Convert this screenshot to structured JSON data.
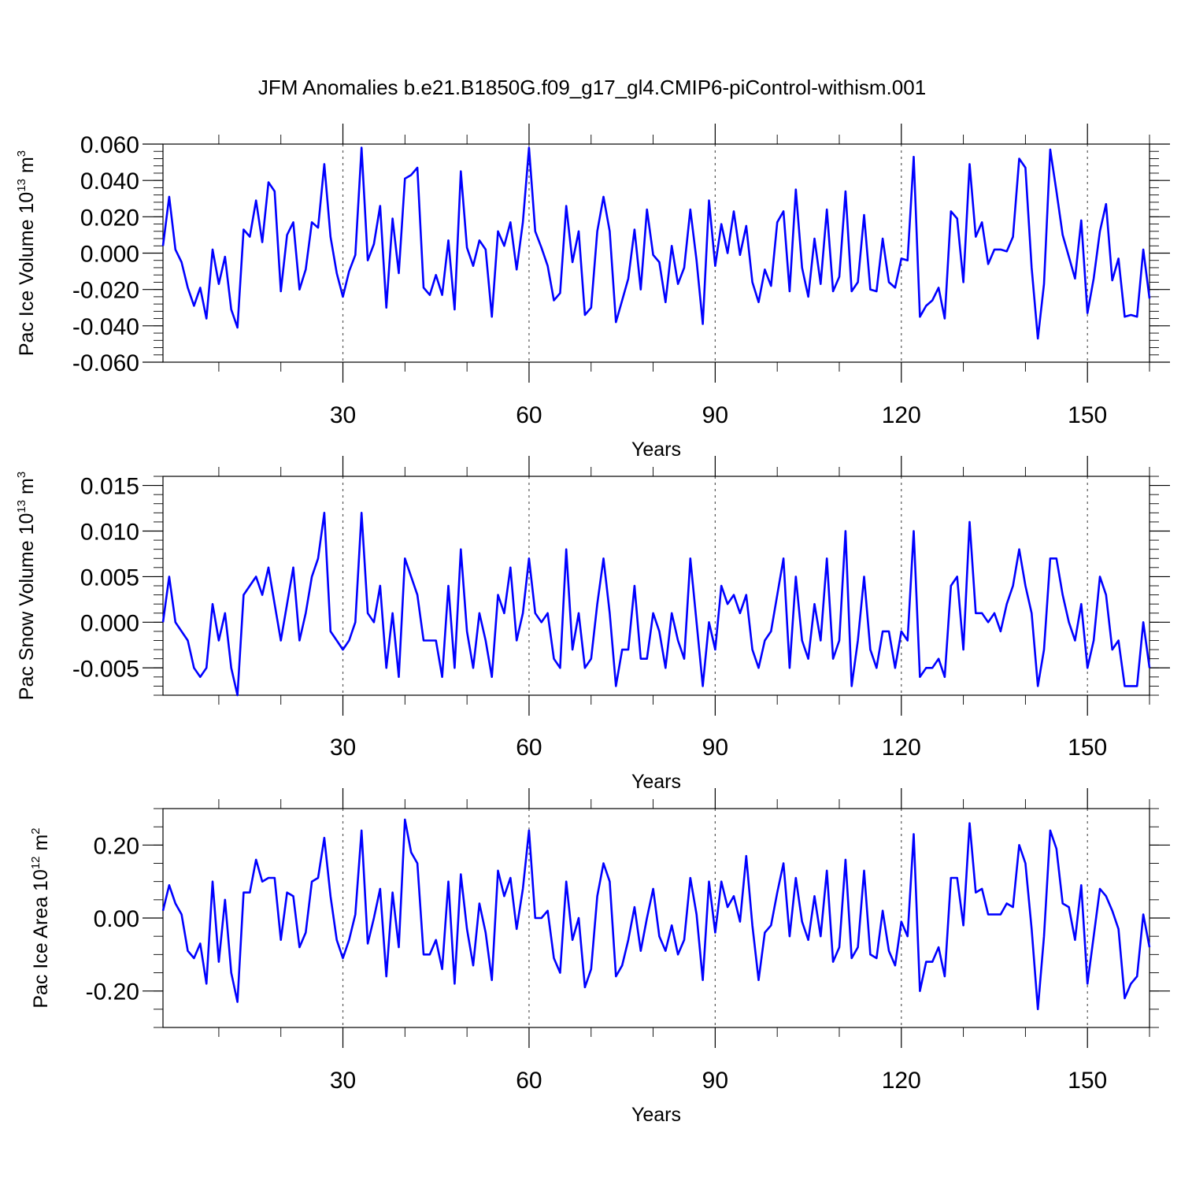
{
  "title": "JFM Anomalies b.e21.B1850G.f09_g17_gl4.CMIP6-piControl-withism.001",
  "line_color": "#0000ff",
  "chart_data": [
    {
      "type": "line",
      "xlabel": "Years",
      "ylabel": "Pac Ice Volume 10",
      "ylabel_sup": "13",
      "ylabel_unit": " m",
      "ylabel_unit_sup": "3",
      "xlim": [
        1,
        160
      ],
      "ylim": [
        -0.06,
        0.06
      ],
      "yticks": [
        -0.06,
        -0.04,
        -0.02,
        0.0,
        0.02,
        0.04,
        0.06
      ],
      "ytick_labels": [
        "-0.060",
        "-0.040",
        "-0.020",
        "0.000",
        "0.020",
        "0.040",
        "0.060"
      ],
      "xticks": [
        30,
        60,
        90,
        120,
        150
      ],
      "xtick_labels": [
        "30",
        "60",
        "90",
        "120",
        "150"
      ],
      "grid": "vertical dashed at x ticks",
      "series": [
        {
          "values": [
            0.004,
            0.031,
            0.002,
            -0.005,
            -0.019,
            -0.029,
            -0.019,
            -0.036,
            0.002,
            -0.017,
            -0.002,
            -0.031,
            -0.041,
            0.013,
            0.009,
            0.029,
            0.006,
            0.039,
            0.034,
            -0.021,
            0.01,
            0.017,
            -0.02,
            -0.009,
            0.017,
            0.014,
            0.049,
            0.009,
            -0.011,
            -0.024,
            -0.01,
            -0.001,
            0.058,
            -0.004,
            0.005,
            0.026,
            -0.03,
            0.019,
            -0.011,
            0.041,
            0.043,
            0.047,
            -0.019,
            -0.023,
            -0.012,
            -0.023,
            0.007,
            -0.031,
            0.045,
            0.003,
            -0.007,
            0.007,
            0.002,
            -0.035,
            0.012,
            0.004,
            0.017,
            -0.009,
            0.017,
            0.058,
            0.012,
            0.003,
            -0.007,
            -0.026,
            -0.022,
            0.026,
            -0.005,
            0.012,
            -0.034,
            -0.03,
            0.012,
            0.031,
            0.012,
            -0.038,
            -0.026,
            -0.014,
            0.013,
            -0.02,
            0.024,
            -0.001,
            -0.005,
            -0.027,
            0.004,
            -0.017,
            -0.008,
            0.024,
            -0.004,
            -0.039,
            0.029,
            -0.007,
            0.016,
            0.0,
            0.023,
            -0.001,
            0.015,
            -0.016,
            -0.027,
            -0.009,
            -0.018,
            0.017,
            0.023,
            -0.021,
            0.035,
            -0.008,
            -0.024,
            0.008,
            -0.017,
            0.024,
            -0.021,
            -0.013,
            0.034,
            -0.021,
            -0.016,
            0.021,
            -0.02,
            -0.021,
            0.008,
            -0.016,
            -0.019,
            -0.003,
            -0.004,
            0.053,
            -0.035,
            -0.029,
            -0.026,
            -0.019,
            -0.036,
            0.023,
            0.019,
            -0.016,
            0.049,
            0.009,
            0.017,
            -0.006,
            0.002,
            0.002,
            0.001,
            0.009,
            0.052,
            0.047,
            -0.008,
            -0.047,
            -0.017,
            0.057,
            0.034,
            0.01,
            -0.002,
            -0.014,
            0.018,
            -0.033,
            -0.014,
            0.012,
            0.027,
            -0.015,
            -0.003,
            -0.035,
            -0.034,
            -0.035,
            0.002,
            -0.025
          ]
        }
      ]
    },
    {
      "type": "line",
      "xlabel": "Years",
      "ylabel": "Pac Snow Volume 10",
      "ylabel_sup": "13",
      "ylabel_unit": " m",
      "ylabel_unit_sup": "3",
      "xlim": [
        1,
        160
      ],
      "ylim": [
        -0.008,
        0.016
      ],
      "yticks": [
        -0.005,
        0.0,
        0.005,
        0.01,
        0.015
      ],
      "ytick_labels": [
        "-0.005",
        "0.000",
        "0.005",
        "0.010",
        "0.015"
      ],
      "xticks": [
        30,
        60,
        90,
        120,
        150
      ],
      "xtick_labels": [
        "30",
        "60",
        "90",
        "120",
        "150"
      ],
      "grid": "vertical dashed at x ticks",
      "series": [
        {
          "values": [
            0.0,
            0.005,
            0.0,
            -0.001,
            -0.002,
            -0.005,
            -0.006,
            -0.005,
            0.002,
            -0.002,
            0.001,
            -0.005,
            -0.008,
            0.003,
            0.004,
            0.005,
            0.003,
            0.006,
            0.002,
            -0.002,
            0.002,
            0.006,
            -0.002,
            0.001,
            0.005,
            0.007,
            0.012,
            -0.001,
            -0.002,
            -0.003,
            -0.002,
            0.0,
            0.012,
            0.001,
            0.0,
            0.004,
            -0.005,
            0.001,
            -0.006,
            0.007,
            0.005,
            0.003,
            -0.002,
            -0.002,
            -0.002,
            -0.006,
            0.004,
            -0.005,
            0.008,
            -0.001,
            -0.005,
            0.001,
            -0.002,
            -0.006,
            0.003,
            0.001,
            0.006,
            -0.002,
            0.001,
            0.007,
            0.001,
            0.0,
            0.001,
            -0.004,
            -0.005,
            0.008,
            -0.003,
            0.001,
            -0.005,
            -0.004,
            0.002,
            0.007,
            0.001,
            -0.007,
            -0.003,
            -0.003,
            0.004,
            -0.004,
            -0.004,
            0.001,
            -0.001,
            -0.005,
            0.001,
            -0.002,
            -0.004,
            0.007,
            0.0,
            -0.007,
            0.0,
            -0.003,
            0.004,
            0.002,
            0.003,
            0.001,
            0.003,
            -0.003,
            -0.005,
            -0.002,
            -0.001,
            0.003,
            0.007,
            -0.005,
            0.005,
            -0.002,
            -0.004,
            0.002,
            -0.002,
            0.007,
            -0.004,
            -0.002,
            0.01,
            -0.007,
            -0.002,
            0.005,
            -0.003,
            -0.005,
            -0.001,
            -0.001,
            -0.005,
            -0.001,
            -0.002,
            0.01,
            -0.006,
            -0.005,
            -0.005,
            -0.004,
            -0.006,
            0.004,
            0.005,
            -0.003,
            0.011,
            0.001,
            0.001,
            0.0,
            0.001,
            -0.001,
            0.002,
            0.004,
            0.008,
            0.004,
            0.001,
            -0.007,
            -0.003,
            0.007,
            0.007,
            0.003,
            0.0,
            -0.002,
            0.002,
            -0.005,
            -0.002,
            0.005,
            0.003,
            -0.003,
            -0.002,
            -0.007,
            -0.007,
            -0.007,
            0.0,
            -0.005
          ]
        }
      ]
    },
    {
      "type": "line",
      "xlabel": "Years",
      "ylabel": "Pac Ice Area 10",
      "ylabel_sup": "12",
      "ylabel_unit": " m",
      "ylabel_unit_sup": "2",
      "xlim": [
        1,
        160
      ],
      "ylim": [
        -0.3,
        0.3
      ],
      "yticks": [
        -0.2,
        0.0,
        0.2
      ],
      "ytick_labels": [
        "-0.20",
        "0.00",
        "0.20"
      ],
      "xticks": [
        30,
        60,
        90,
        120,
        150
      ],
      "xtick_labels": [
        "30",
        "60",
        "90",
        "120",
        "150"
      ],
      "grid": "vertical dashed at x ticks",
      "series": [
        {
          "values": [
            0.02,
            0.09,
            0.04,
            0.01,
            -0.09,
            -0.11,
            -0.07,
            -0.18,
            0.1,
            -0.12,
            0.05,
            -0.15,
            -0.23,
            0.07,
            0.07,
            0.16,
            0.1,
            0.11,
            0.11,
            -0.06,
            0.07,
            0.06,
            -0.08,
            -0.04,
            0.1,
            0.11,
            0.22,
            0.06,
            -0.06,
            -0.11,
            -0.06,
            0.01,
            0.24,
            -0.07,
            0.0,
            0.08,
            -0.16,
            0.07,
            -0.08,
            0.27,
            0.18,
            0.15,
            -0.1,
            -0.1,
            -0.06,
            -0.14,
            0.1,
            -0.18,
            0.12,
            -0.03,
            -0.13,
            0.04,
            -0.04,
            -0.17,
            0.13,
            0.06,
            0.11,
            -0.03,
            0.08,
            0.24,
            0.0,
            0.0,
            0.02,
            -0.11,
            -0.15,
            0.1,
            -0.06,
            0.0,
            -0.19,
            -0.14,
            0.06,
            0.15,
            0.1,
            -0.16,
            -0.13,
            -0.06,
            0.03,
            -0.09,
            0.0,
            0.08,
            -0.05,
            -0.09,
            -0.02,
            -0.1,
            -0.06,
            0.11,
            0.01,
            -0.17,
            0.1,
            -0.04,
            0.1,
            0.03,
            0.06,
            -0.01,
            0.17,
            -0.02,
            -0.17,
            -0.04,
            -0.02,
            0.07,
            0.15,
            -0.05,
            0.11,
            -0.01,
            -0.06,
            0.06,
            -0.05,
            0.13,
            -0.12,
            -0.08,
            0.16,
            -0.11,
            -0.08,
            0.13,
            -0.1,
            -0.11,
            0.02,
            -0.09,
            -0.13,
            -0.01,
            -0.05,
            0.23,
            -0.2,
            -0.12,
            -0.12,
            -0.08,
            -0.16,
            0.11,
            0.11,
            -0.02,
            0.26,
            0.07,
            0.08,
            0.01,
            0.01,
            0.01,
            0.04,
            0.03,
            0.2,
            0.15,
            -0.03,
            -0.25,
            -0.05,
            0.24,
            0.19,
            0.04,
            0.03,
            -0.06,
            0.09,
            -0.18,
            -0.05,
            0.08,
            0.06,
            0.02,
            -0.03,
            -0.22,
            -0.18,
            -0.16,
            0.01,
            -0.08
          ]
        }
      ]
    }
  ]
}
